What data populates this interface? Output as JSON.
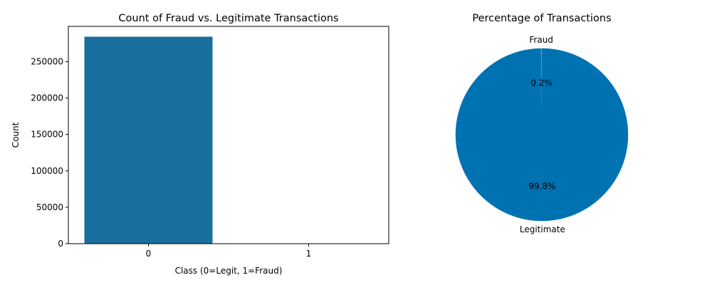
{
  "chart_data": [
    {
      "type": "bar",
      "title": "Count of Fraud vs. Legitimate Transactions",
      "xlabel": "Class (0=Legit, 1=Fraud)",
      "ylabel": "Count",
      "categories": [
        "0",
        "1"
      ],
      "values": [
        284315,
        492
      ],
      "ylim": [
        0,
        298500
      ],
      "yticks": [
        0,
        50000,
        100000,
        150000,
        200000,
        250000
      ],
      "colors": [
        "#1a6e9e"
      ],
      "grid": false
    },
    {
      "type": "pie",
      "title": "Percentage of Transactions",
      "labels": [
        "Fraud",
        "Legitimate"
      ],
      "values": [
        0.2,
        99.8
      ],
      "percent_labels": [
        "0.2%",
        "99.8%"
      ],
      "colors": [
        "#b8a34e",
        "#0072b2"
      ],
      "start_angle_deg": 90
    }
  ]
}
